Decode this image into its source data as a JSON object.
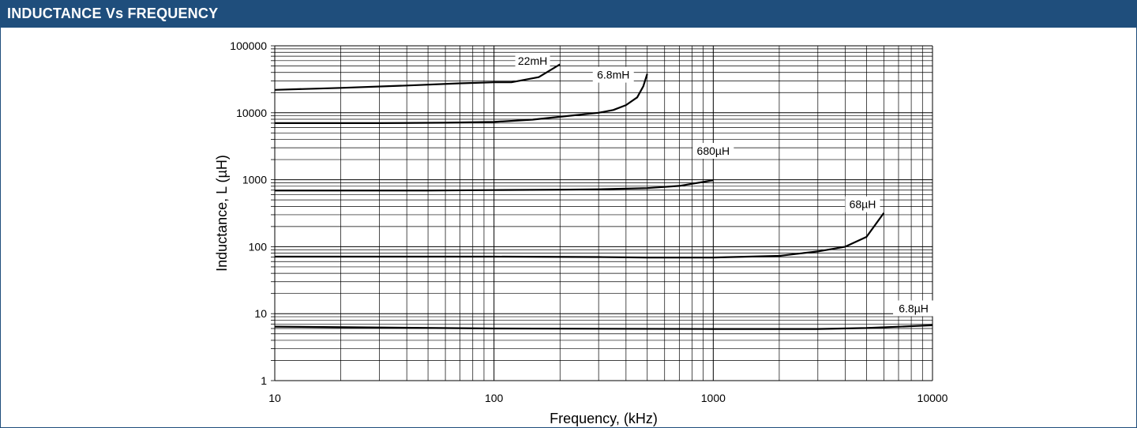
{
  "header": {
    "title": "INDUCTANCE Vs FREQUENCY"
  },
  "colors": {
    "header_bg": "#1f4e7c",
    "header_text": "#ffffff",
    "grid": "#000000",
    "series": "#000000"
  },
  "chart_data": {
    "type": "line",
    "title": "",
    "xlabel": "Frequency, (kHz)",
    "ylabel": "Inductance, L (µH)",
    "x_scale": "log",
    "y_scale": "log",
    "xlim": [
      10,
      10000
    ],
    "ylim": [
      1,
      100000
    ],
    "x_ticks": [
      "10",
      "100",
      "1000",
      "10000"
    ],
    "y_ticks": [
      "1",
      "10",
      "100",
      "1000",
      "10000",
      "100000"
    ],
    "grid": true,
    "legend": "none",
    "series": [
      {
        "name": "22mH",
        "label_at": [
          150,
          60000
        ],
        "points": [
          [
            10,
            22000
          ],
          [
            20,
            23500
          ],
          [
            40,
            25500
          ],
          [
            70,
            27500
          ],
          [
            100,
            28500
          ],
          [
            120,
            28500
          ],
          [
            160,
            34000
          ],
          [
            200,
            53000
          ]
        ]
      },
      {
        "name": "6.8mH",
        "label_at": [
          350,
          37000
        ],
        "points": [
          [
            10,
            7000
          ],
          [
            30,
            7000
          ],
          [
            60,
            7100
          ],
          [
            100,
            7300
          ],
          [
            150,
            7900
          ],
          [
            200,
            8700
          ],
          [
            300,
            10000
          ],
          [
            350,
            11000
          ],
          [
            400,
            13000
          ],
          [
            450,
            17000
          ],
          [
            480,
            25000
          ],
          [
            500,
            38000
          ]
        ]
      },
      {
        "name": "680µH",
        "label_at": [
          1000,
          2700
        ],
        "points": [
          [
            10,
            690
          ],
          [
            50,
            690
          ],
          [
            100,
            700
          ],
          [
            200,
            710
          ],
          [
            300,
            720
          ],
          [
            500,
            750
          ],
          [
            700,
            810
          ],
          [
            1000,
            980
          ]
        ]
      },
      {
        "name": "68µH",
        "label_at": [
          4800,
          430
        ],
        "points": [
          [
            10,
            71
          ],
          [
            100,
            71
          ],
          [
            300,
            70
          ],
          [
            500,
            69
          ],
          [
            1000,
            69
          ],
          [
            2000,
            73
          ],
          [
            3000,
            85
          ],
          [
            4000,
            100
          ],
          [
            5000,
            140
          ],
          [
            6000,
            320
          ]
        ]
      },
      {
        "name": "6.8µH",
        "label_at": [
          8200,
          12
        ],
        "points": [
          [
            10,
            6.4
          ],
          [
            100,
            6.0
          ],
          [
            1000,
            5.9
          ],
          [
            3000,
            5.9
          ],
          [
            5000,
            6.1
          ],
          [
            10000,
            6.7
          ]
        ]
      }
    ]
  }
}
